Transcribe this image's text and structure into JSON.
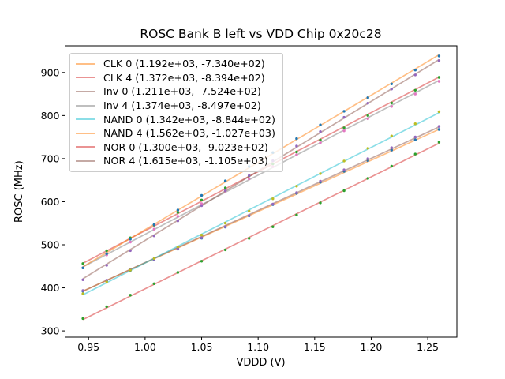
{
  "chart_data": {
    "type": "scatter",
    "subtype": "measured points with linear fit lines",
    "title": "ROSC Bank B left vs VDD Chip 0x20c28",
    "xlabel": "VDDD (V)",
    "ylabel": "ROSC (MHz)",
    "xlim": [
      0.92925,
      1.27575
    ],
    "ylim": [
      285.5,
      962.0
    ],
    "xtick_labels": [
      "0.95",
      "1.00",
      "1.05",
      "1.10",
      "1.15",
      "1.20",
      "1.25"
    ],
    "ytick_labels": [
      "300",
      "400",
      "500",
      "600",
      "700",
      "800",
      "900"
    ],
    "grid": false,
    "legend_position": "upper-left",
    "x": [
      0.945,
      0.966,
      0.987,
      1.008,
      1.029,
      1.05,
      1.071,
      1.092,
      1.113,
      1.134,
      1.155,
      1.176,
      1.197,
      1.218,
      1.239,
      1.26
    ],
    "series": [
      {
        "name": "CLK 0",
        "label": "CLK 0 (1.192e+03, -7.340e+02)",
        "slope": 1192,
        "intercept": -734.0,
        "line_color": "#ff7f0e",
        "line_alpha": 0.5,
        "marker_color": "#1f77b4"
      },
      {
        "name": "CLK 4",
        "label": "CLK 4 (1.372e+03, -8.394e+02)",
        "slope": 1372,
        "intercept": -839.4,
        "line_color": "#d62728",
        "line_alpha": 0.5,
        "marker_color": "#2ca02c"
      },
      {
        "name": "Inv 0",
        "label": "Inv 0 (1.211e+03, -7.524e+02)",
        "slope": 1211,
        "intercept": -752.4,
        "line_color": "#8c564b",
        "line_alpha": 0.5,
        "marker_color": "#9467bd"
      },
      {
        "name": "Inv 4",
        "label": "Inv 4 (1.374e+03, -8.497e+02)",
        "slope": 1374,
        "intercept": -849.7,
        "line_color": "#7f7f7f",
        "line_alpha": 0.5,
        "marker_color": "#e377c2"
      },
      {
        "name": "NAND 0",
        "label": "NAND 0 (1.342e+03, -8.844e+02)",
        "slope": 1342,
        "intercept": -884.4,
        "line_color": "#17becf",
        "line_alpha": 0.5,
        "marker_color": "#bcbd22"
      },
      {
        "name": "NAND 4",
        "label": "NAND 4 (1.562e+03, -1.027e+03)",
        "slope": 1562,
        "intercept": -1027.0,
        "line_color": "#ff7f0e",
        "line_alpha": 0.5,
        "marker_color": "#1f77b4"
      },
      {
        "name": "NOR 0",
        "label": "NOR 0 (1.300e+03, -9.023e+02)",
        "slope": 1300,
        "intercept": -902.3,
        "line_color": "#d62728",
        "line_alpha": 0.5,
        "marker_color": "#2ca02c"
      },
      {
        "name": "NOR 4",
        "label": "NOR 4 (1.615e+03, -1.105e+03)",
        "slope": 1615,
        "intercept": -1105.0,
        "line_color": "#8c564b",
        "line_alpha": 0.5,
        "marker_color": "#9467bd"
      }
    ],
    "colors": {
      "spine": "#000000",
      "tick": "#000000",
      "background": "#ffffff",
      "legend_border": "#cccccc"
    }
  }
}
